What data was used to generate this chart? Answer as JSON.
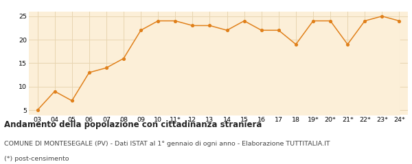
{
  "x_labels": [
    "03",
    "04",
    "05",
    "06",
    "07",
    "08",
    "09",
    "10",
    "11*",
    "12",
    "13",
    "14",
    "15",
    "16",
    "17",
    "18",
    "19*",
    "20*",
    "21*",
    "22*",
    "23*",
    "24*"
  ],
  "values": [
    5,
    9,
    7,
    13,
    14,
    16,
    22,
    24,
    24,
    23,
    23,
    22,
    24,
    22,
    22,
    19,
    24,
    24,
    19,
    24,
    25,
    24
  ],
  "line_color": "#e0801a",
  "fill_color": "#fcefd8",
  "marker_color": "#e0801a",
  "bg_color": "#ffffff",
  "grid_color": "#e8d5b0",
  "ylim": [
    4,
    26
  ],
  "yticks": [
    5,
    10,
    15,
    20,
    25
  ],
  "title": "Andamento della popolazione con cittadinanza straniera",
  "subtitle": "COMUNE DI MONTESEGALE (PV) - Dati ISTAT al 1° gennaio di ogni anno - Elaborazione TUTTITALIA.IT",
  "footnote": "(*) post-censimento",
  "title_fontsize": 8.5,
  "subtitle_fontsize": 6.8,
  "footnote_fontsize": 6.8
}
